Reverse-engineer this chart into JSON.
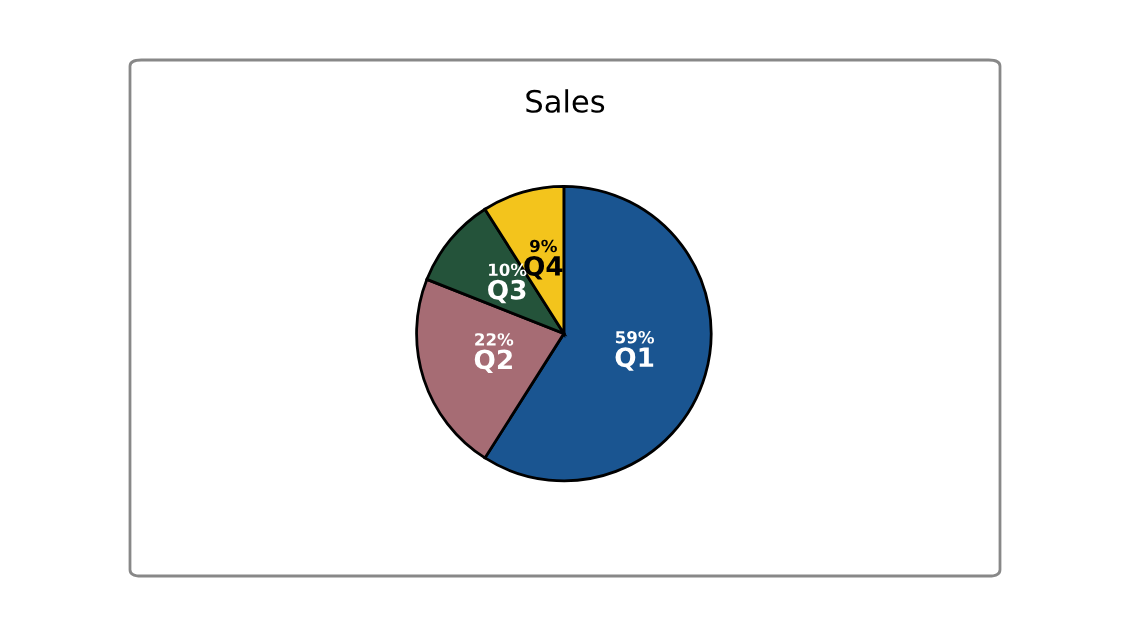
{
  "chart_data": {
    "type": "pie",
    "title": "Sales",
    "categories": [
      "Q1",
      "Q2",
      "Q3",
      "Q4"
    ],
    "values": [
      59,
      22,
      10,
      9
    ],
    "value_labels": [
      "59%",
      "22%",
      "10%",
      "9%"
    ],
    "colors": [
      "#1a5591",
      "#a66c74",
      "#24533a",
      "#f3c41c"
    ]
  }
}
